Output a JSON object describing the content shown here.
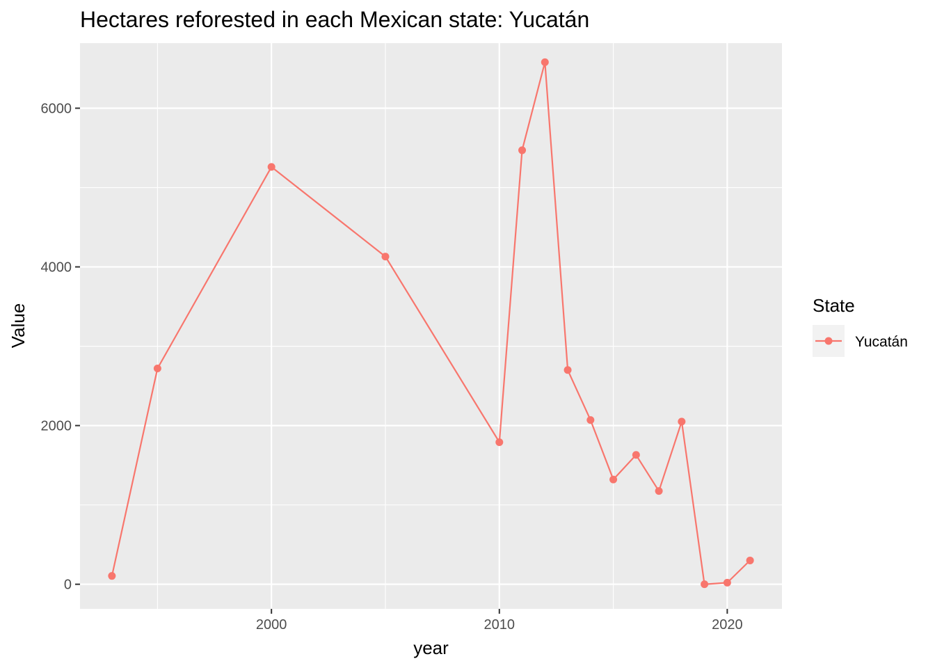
{
  "chart_data": {
    "type": "line",
    "title": "Hectares reforested in each Mexican state: Yucatán",
    "xlabel": "year",
    "ylabel": "Value",
    "xlim": [
      1991.6,
      2022.4
    ],
    "ylim": [
      -310,
      6820
    ],
    "x_ticks": [
      2000,
      2010,
      2020
    ],
    "x_minor_ticks": [
      1995,
      2005,
      2015
    ],
    "y_ticks": [
      0,
      2000,
      4000,
      6000
    ],
    "y_minor_ticks": [
      1000,
      3000,
      5000
    ],
    "grid": true,
    "legend": {
      "title": "State",
      "position": "right"
    },
    "series": [
      {
        "name": "Yucatán",
        "color": "#F8766D",
        "x": [
          1993,
          1995,
          2000,
          2005,
          2010,
          2011,
          2012,
          2013,
          2014,
          2015,
          2016,
          2017,
          2018,
          2019,
          2020,
          2021
        ],
        "y": [
          105,
          2720,
          5260,
          4130,
          1790,
          5470,
          6580,
          2700,
          2070,
          1320,
          1630,
          1175,
          2050,
          0,
          20,
          300
        ]
      }
    ]
  }
}
